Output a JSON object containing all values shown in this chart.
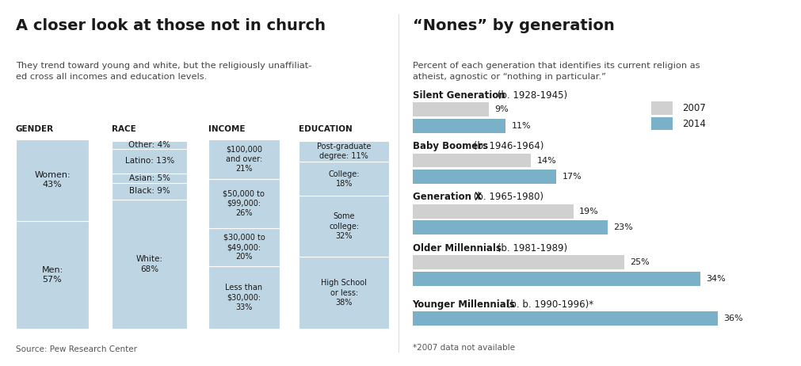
{
  "left_title": "A closer look at those not in church",
  "left_subtitle": "They trend toward young and white, but the religiously unaffiliat-\ned cross all incomes and education levels.",
  "left_source": "Source: Pew Research Center",
  "gender_values": [
    43,
    57
  ],
  "gender_labels": [
    "Women:\n43%",
    "Men:\n57%"
  ],
  "race_values": [
    4,
    13,
    5,
    9,
    68
  ],
  "race_labels": [
    "Other: 4%",
    "Latino: 13%",
    "Asian: 5%",
    "Black: 9%",
    "White:\n68%"
  ],
  "income_values": [
    21,
    26,
    20,
    33
  ],
  "income_labels": [
    "$100,000\nand over:\n21%",
    "$50,000 to\n$99,000:\n26%",
    "$30,000 to\n$49,000:\n20%",
    "Less than\n$30,000:\n33%"
  ],
  "education_values": [
    11,
    18,
    32,
    38
  ],
  "education_labels": [
    "Post-graduate\ndegree: 11%",
    "College:\n18%",
    "Some\ncollege:\n32%",
    "High School\nor less:\n38%"
  ],
  "bar_color": "#bed5e3",
  "right_title": "“Nones” by generation",
  "right_subtitle": "Percent of each generation that identifies its current religion as\natheist, agnostic or “nothing in particular.”",
  "right_footnote": "*2007 data not available",
  "generations": [
    {
      "name": "Silent Generation",
      "years": "b. 1928-1945",
      "val2007": 9,
      "val2014": 11
    },
    {
      "name": "Baby Boomers",
      "years": "b. 1946-1964",
      "val2007": 14,
      "val2014": 17
    },
    {
      "name": "Generation X",
      "years": "b. 1965-1980",
      "val2007": 19,
      "val2014": 23
    },
    {
      "name": "Older Millennials",
      "years": "b. 1981-1989",
      "val2007": 25,
      "val2014": 34
    },
    {
      "name": "Younger Millennials",
      "years": "b. 1990-1996)*",
      "val2007": null,
      "val2014": 36
    }
  ],
  "color_2007": "#d0d0d0",
  "color_2014": "#7ab0c8",
  "max_bar_val": 40,
  "section_headers": [
    "GENDER",
    "RACE",
    "INCOME",
    "EDUCATION"
  ],
  "bg_color": "#ffffff",
  "text_color": "#1a1a1a"
}
